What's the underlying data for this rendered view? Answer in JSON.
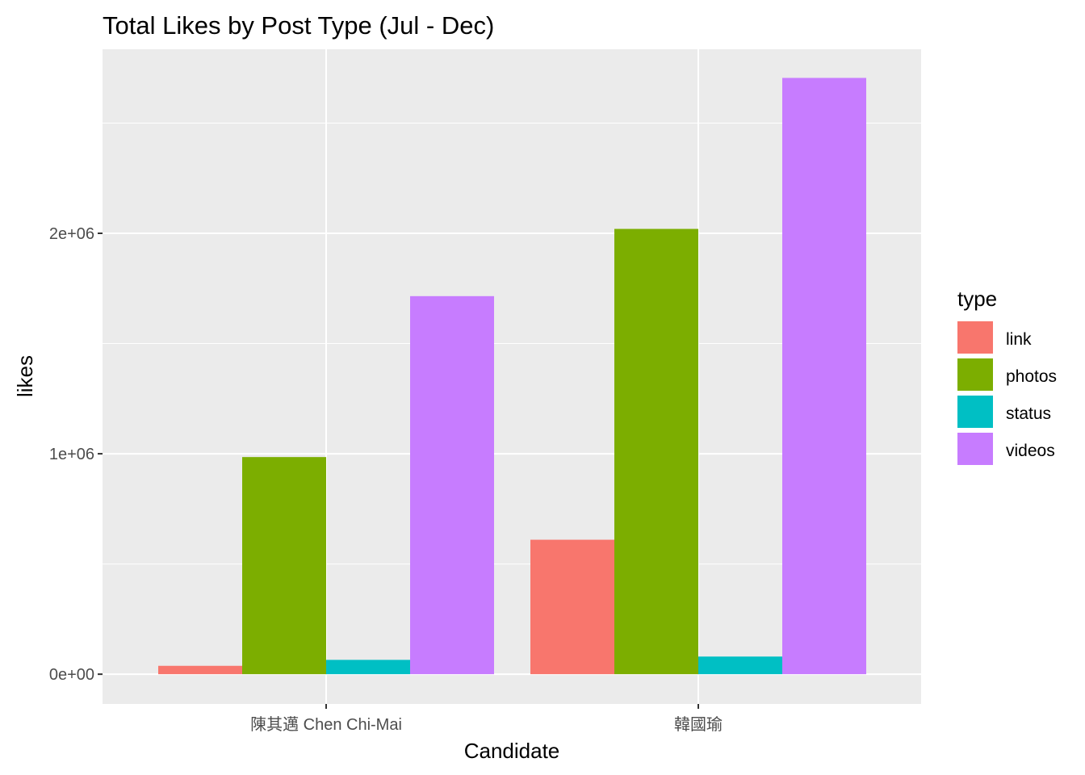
{
  "chart_data": {
    "type": "bar",
    "title": "Total Likes by Post Type (Jul - Dec)",
    "xlabel": "Candidate",
    "ylabel": "likes",
    "categories": [
      "陳其邁 Chen Chi-Mai",
      "韓國瑜"
    ],
    "series": [
      {
        "name": "link",
        "color": "#F8766D",
        "values": [
          38000,
          610000
        ]
      },
      {
        "name": "photos",
        "color": "#7CAE00",
        "values": [
          985000,
          2020000
        ]
      },
      {
        "name": "status",
        "color": "#00BFC4",
        "values": [
          65000,
          80000
        ]
      },
      {
        "name": "videos",
        "color": "#C77CFF",
        "values": [
          1715000,
          2705000
        ]
      }
    ],
    "ylim": [
      -135000,
      2835000
    ],
    "y_ticks": [
      {
        "value": 0,
        "label": "0e+00"
      },
      {
        "value": 1000000,
        "label": "1e+06"
      },
      {
        "value": 2000000,
        "label": "2e+06"
      }
    ],
    "y_minor_ticks": [
      500000,
      1500000,
      2500000
    ],
    "legend_title": "type",
    "legend_position": "right",
    "grid": true,
    "panel_background": "#EBEBEB",
    "grid_color": "#FFFFFF"
  }
}
